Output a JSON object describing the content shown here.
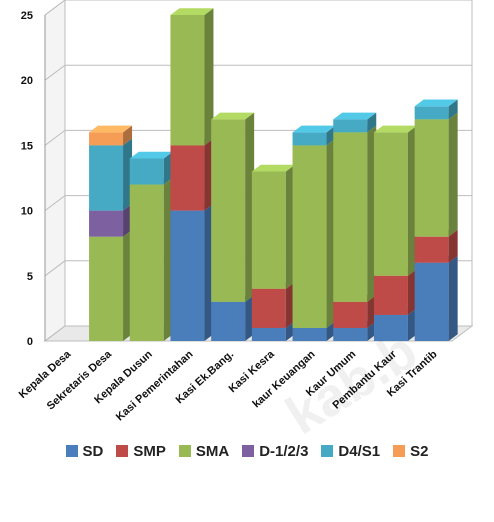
{
  "chart_data": {
    "type": "bar",
    "stacked": true,
    "style": "3d",
    "categories": [
      "Kepala Desa",
      "Sekretaris Desa",
      "Kepala Dusun",
      "Kasi Pemerintahan",
      "Kasi Ek.Bang.",
      "Kasi Kesra",
      "kaur Keuangan",
      "Kaur Umum",
      "Pembantu Kaur",
      "Kasi Trantib"
    ],
    "series": [
      {
        "name": "SD",
        "color": "#4a7ebb",
        "values": [
          0,
          0,
          0,
          10,
          3,
          1,
          1,
          1,
          2,
          6
        ]
      },
      {
        "name": "SMP",
        "color": "#be4b48",
        "values": [
          0,
          0,
          0,
          5,
          0,
          3,
          0,
          2,
          3,
          2
        ]
      },
      {
        "name": "SMA",
        "color": "#98b954",
        "values": [
          0,
          8,
          12,
          10,
          14,
          9,
          14,
          13,
          11,
          9
        ]
      },
      {
        "name": "D-1/2/3",
        "color": "#7d60a0",
        "values": [
          0,
          2,
          0,
          0,
          0,
          0,
          0,
          0,
          0,
          0
        ]
      },
      {
        "name": "D4/S1",
        "color": "#46aac5",
        "values": [
          0,
          5,
          2,
          0,
          0,
          0,
          1,
          1,
          0,
          1
        ]
      },
      {
        "name": "S2",
        "color": "#f59d56",
        "values": [
          0,
          1,
          0,
          0,
          0,
          0,
          0,
          0,
          0,
          0
        ]
      }
    ],
    "y_ticks": [
      "0",
      "5",
      "10",
      "15",
      "20",
      "25"
    ],
    "ylim": [
      0,
      25
    ],
    "grid": true,
    "legend_position": "bottom"
  },
  "watermark_text": "kab.b"
}
